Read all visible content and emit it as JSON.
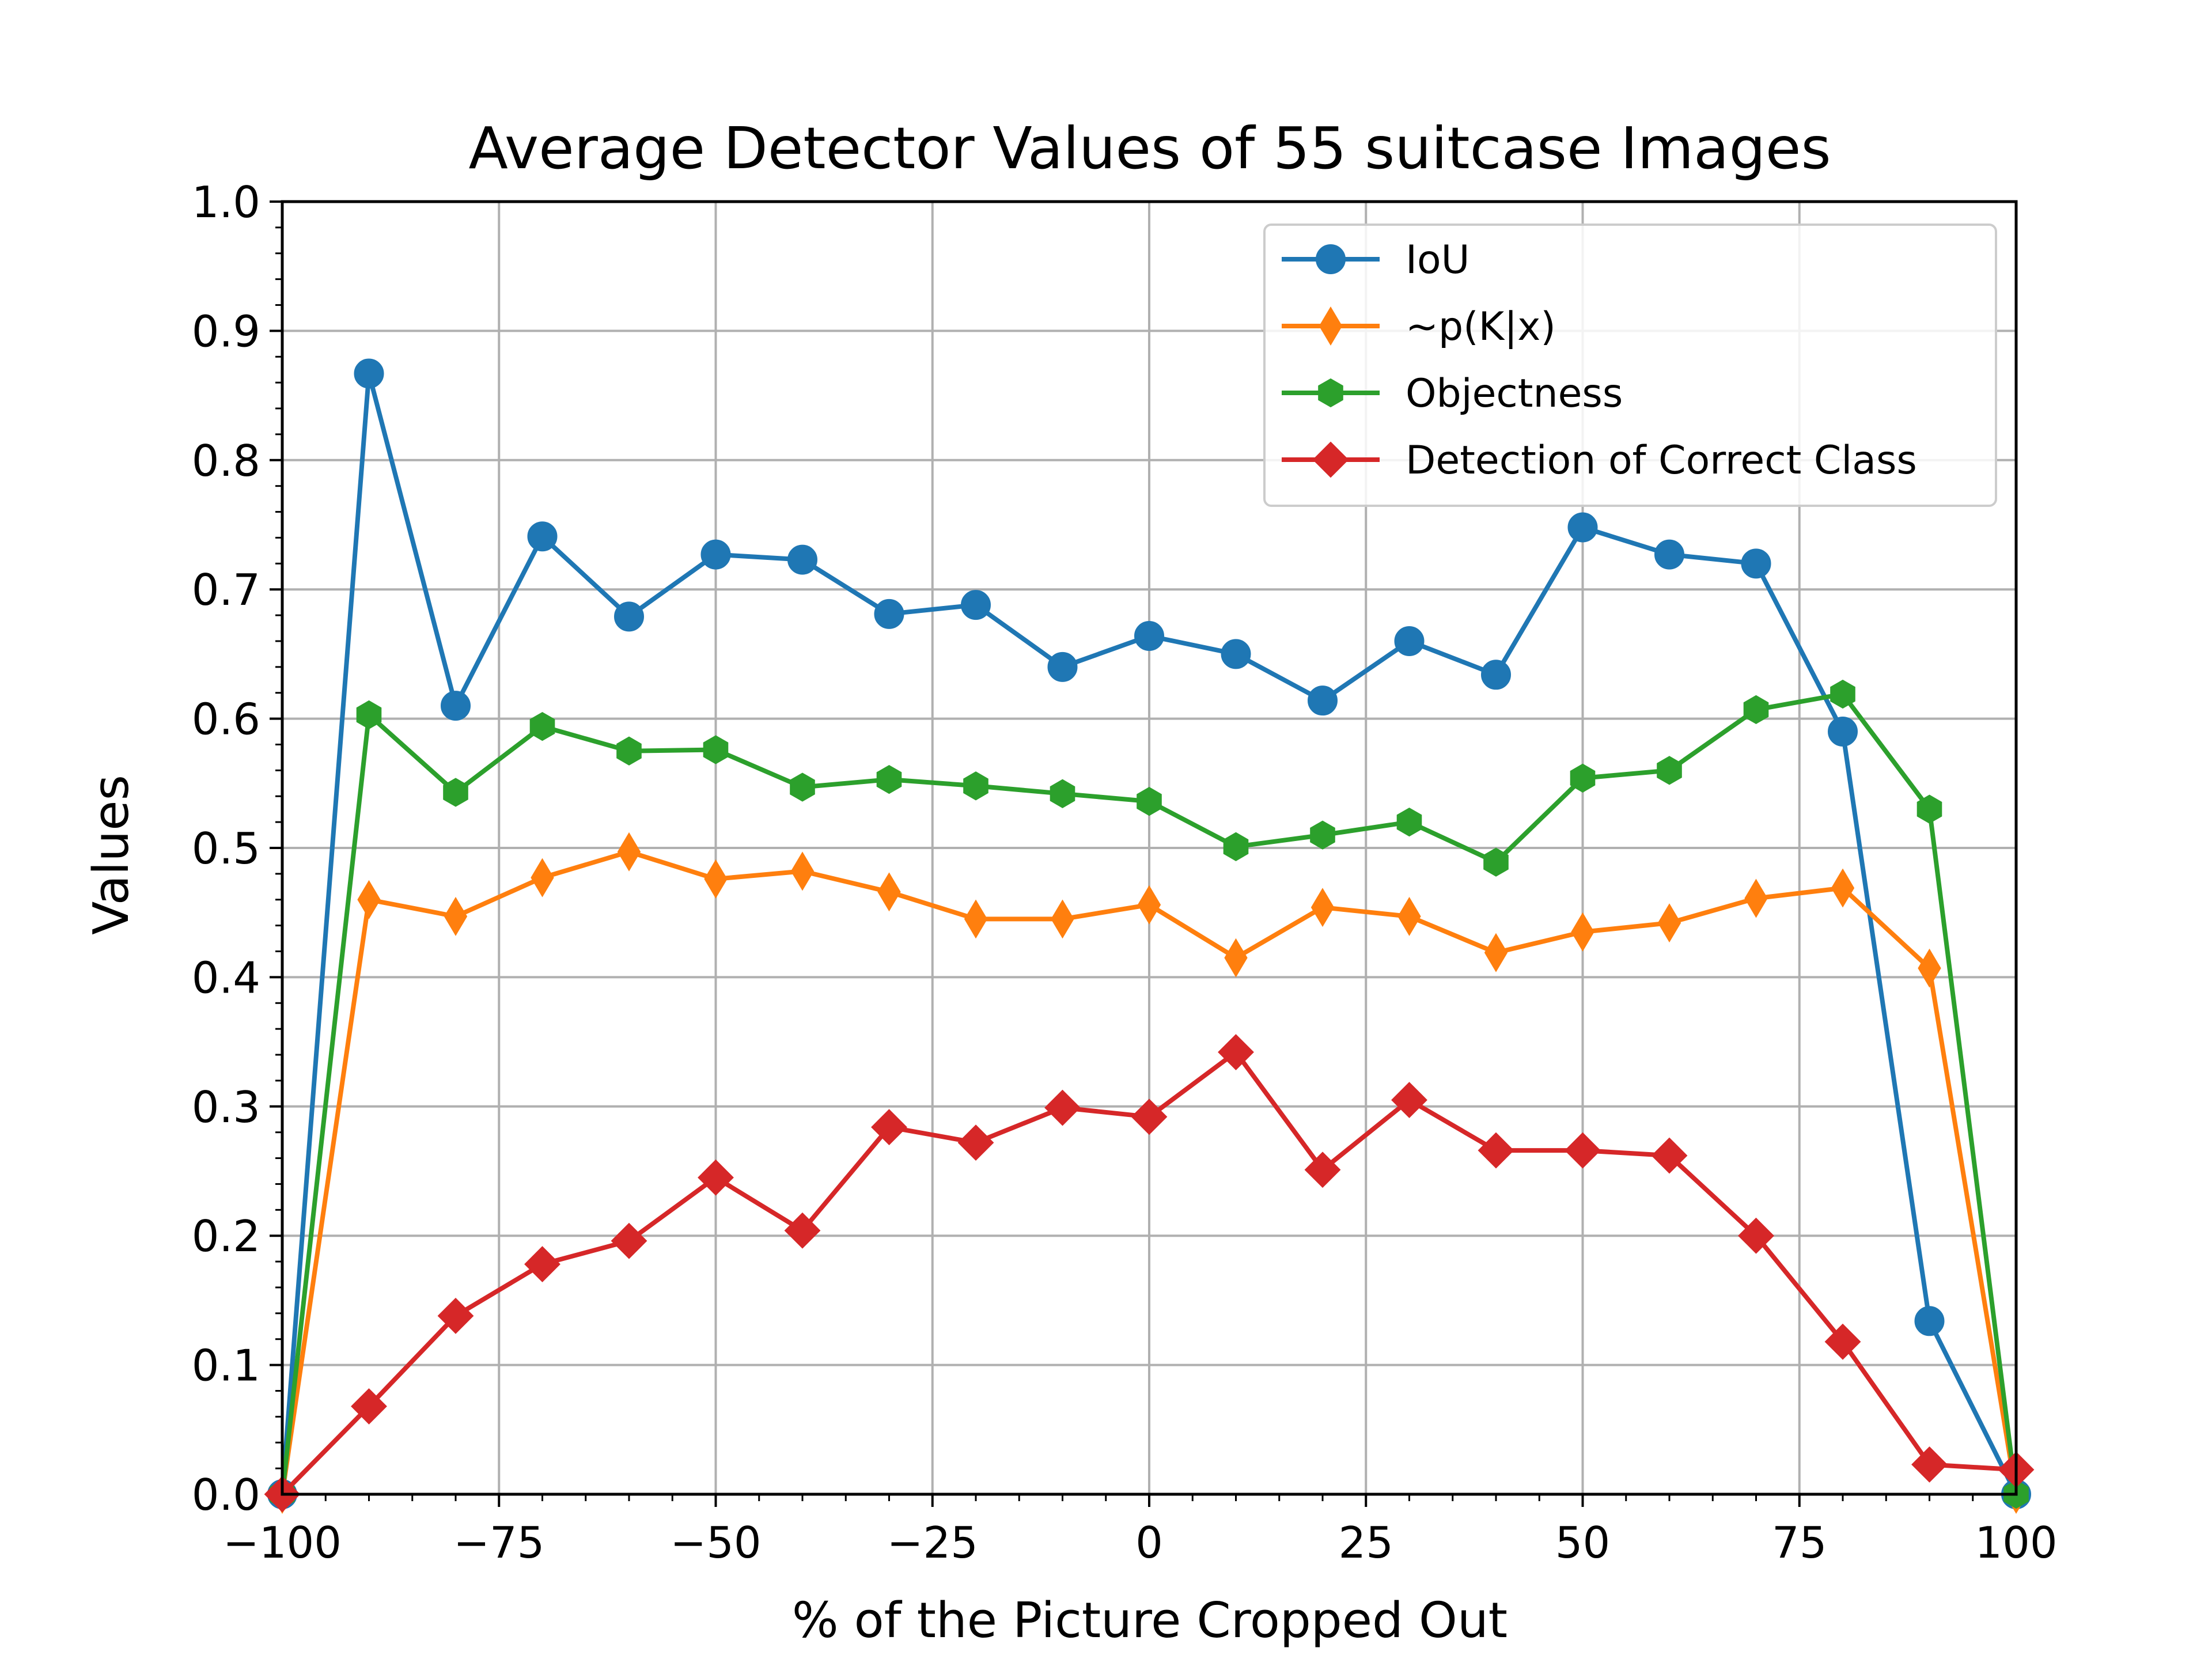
{
  "chart_data": {
    "type": "line",
    "title": "Average Detector Values of 55 suitcase Images",
    "xlabel": "% of the Picture Cropped Out",
    "ylabel": "Values",
    "xlim": [
      -100,
      100
    ],
    "ylim": [
      0,
      1
    ],
    "grid": true,
    "legend_position": "top-right",
    "x_ticks": [
      "−100",
      "−75",
      "−50",
      "−25",
      "0",
      "25",
      "50",
      "75",
      "100"
    ],
    "y_ticks": [
      "0.0",
      "0.1",
      "0.2",
      "0.3",
      "0.4",
      "0.5",
      "0.6",
      "0.7",
      "0.8",
      "0.9",
      "1.0"
    ],
    "x": [
      -100,
      -90,
      -80,
      -70,
      -60,
      -50,
      -40,
      -30,
      -20,
      -10,
      0,
      10,
      20,
      30,
      40,
      50,
      60,
      70,
      80,
      90,
      100
    ],
    "series": [
      {
        "name": "IoU",
        "color": "#1f77b4",
        "marker": "circle",
        "values": [
          0.0,
          0.867,
          0.61,
          0.741,
          0.679,
          0.727,
          0.723,
          0.681,
          0.688,
          0.64,
          0.664,
          0.65,
          0.614,
          0.66,
          0.634,
          0.748,
          0.727,
          0.72,
          0.59,
          0.134,
          0.0
        ]
      },
      {
        "name": "~p(K|x)",
        "color": "#ff7f0e",
        "marker": "thin-diamond",
        "values": [
          0.0,
          0.46,
          0.447,
          0.477,
          0.497,
          0.476,
          0.482,
          0.466,
          0.445,
          0.445,
          0.456,
          0.415,
          0.454,
          0.447,
          0.419,
          0.435,
          0.442,
          0.461,
          0.469,
          0.407,
          0.0
        ]
      },
      {
        "name": "Objectness",
        "color": "#2ca02c",
        "marker": "hexagon",
        "values": [
          0.0,
          0.603,
          0.543,
          0.594,
          0.575,
          0.576,
          0.547,
          0.553,
          0.548,
          0.542,
          0.536,
          0.501,
          0.51,
          0.52,
          0.489,
          0.554,
          0.56,
          0.607,
          0.619,
          0.53,
          0.0
        ]
      },
      {
        "name": "Detection of Correct Class",
        "color": "#d62728",
        "marker": "diamond",
        "values": [
          0.0,
          0.068,
          0.138,
          0.178,
          0.196,
          0.245,
          0.204,
          0.284,
          0.272,
          0.299,
          0.292,
          0.342,
          0.251,
          0.305,
          0.266,
          0.266,
          0.262,
          0.2,
          0.118,
          0.023,
          0.019
        ]
      }
    ]
  }
}
